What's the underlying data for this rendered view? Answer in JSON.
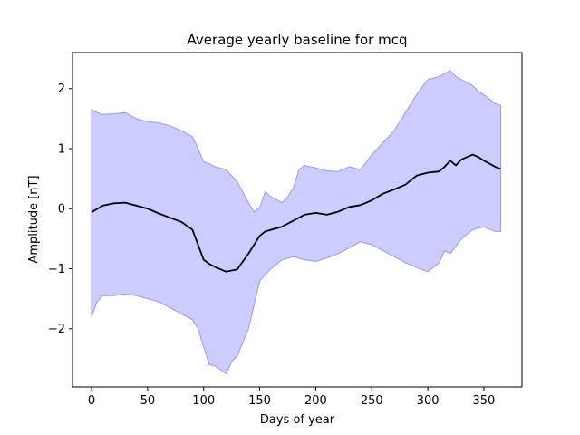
{
  "chart_data": {
    "type": "area",
    "title": "Average yearly baseline for mcq",
    "xlabel": "Days of year",
    "ylabel": "Amplitude [nT]",
    "xlim": [
      -17,
      384
    ],
    "ylim": [
      -2.97,
      2.6
    ],
    "xticks": [
      0,
      50,
      100,
      150,
      200,
      250,
      300,
      350
    ],
    "yticks": [
      -2,
      -1,
      0,
      1,
      2
    ],
    "xtick_labels": [
      "0",
      "50",
      "100",
      "150",
      "200",
      "250",
      "300",
      "350"
    ],
    "ytick_labels": [
      "−2",
      "−1",
      "0",
      "1",
      "2"
    ],
    "grid": false,
    "colors": {
      "mean_line": "#000000",
      "band_fill": "#ccccff",
      "band_edge": "#9999ee"
    },
    "series": [
      {
        "role": "mean",
        "x": [
          0,
          10,
          20,
          30,
          40,
          50,
          60,
          70,
          80,
          90,
          95,
          100,
          105,
          110,
          120,
          130,
          140,
          150,
          155,
          170,
          180,
          190,
          200,
          210,
          220,
          230,
          240,
          250,
          260,
          270,
          280,
          290,
          300,
          310,
          315,
          320,
          325,
          330,
          340,
          345,
          350,
          360,
          365
        ],
        "y": [
          -0.06,
          0.05,
          0.09,
          0.1,
          0.05,
          0.0,
          -0.08,
          -0.15,
          -0.22,
          -0.35,
          -0.6,
          -0.85,
          -0.92,
          -0.97,
          -1.05,
          -1.01,
          -0.75,
          -0.45,
          -0.38,
          -0.3,
          -0.2,
          -0.1,
          -0.07,
          -0.1,
          -0.05,
          0.03,
          0.06,
          0.14,
          0.25,
          0.32,
          0.4,
          0.55,
          0.6,
          0.62,
          0.7,
          0.8,
          0.72,
          0.82,
          0.9,
          0.86,
          0.8,
          0.7,
          0.66
        ]
      },
      {
        "role": "upper",
        "x": [
          0,
          5,
          10,
          20,
          30,
          40,
          50,
          60,
          70,
          80,
          90,
          95,
          100,
          105,
          110,
          120,
          130,
          140,
          145,
          150,
          155,
          160,
          170,
          175,
          180,
          185,
          190,
          200,
          210,
          220,
          230,
          240,
          250,
          260,
          270,
          280,
          290,
          300,
          310,
          315,
          320,
          325,
          330,
          340,
          345,
          350,
          360,
          365
        ],
        "y": [
          1.65,
          1.6,
          1.57,
          1.58,
          1.6,
          1.5,
          1.45,
          1.43,
          1.38,
          1.3,
          1.2,
          1.0,
          0.78,
          0.75,
          0.7,
          0.65,
          0.45,
          0.1,
          -0.05,
          0.02,
          0.28,
          0.2,
          0.1,
          0.2,
          0.35,
          0.65,
          0.72,
          0.68,
          0.63,
          0.62,
          0.7,
          0.65,
          0.9,
          1.1,
          1.3,
          1.6,
          1.9,
          2.15,
          2.2,
          2.25,
          2.3,
          2.2,
          2.15,
          2.05,
          1.95,
          1.9,
          1.75,
          1.72
        ]
      },
      {
        "role": "lower",
        "x": [
          0,
          5,
          10,
          20,
          30,
          40,
          50,
          60,
          70,
          80,
          90,
          95,
          100,
          105,
          110,
          115,
          120,
          125,
          130,
          140,
          145,
          150,
          160,
          170,
          180,
          190,
          200,
          210,
          220,
          230,
          240,
          250,
          260,
          270,
          280,
          290,
          300,
          310,
          315,
          320,
          330,
          340,
          350,
          360,
          365
        ],
        "y": [
          -1.8,
          -1.55,
          -1.45,
          -1.45,
          -1.42,
          -1.45,
          -1.5,
          -1.55,
          -1.65,
          -1.75,
          -1.85,
          -2.0,
          -2.3,
          -2.6,
          -2.62,
          -2.68,
          -2.75,
          -2.55,
          -2.45,
          -2.0,
          -1.6,
          -1.2,
          -1.0,
          -0.85,
          -0.8,
          -0.85,
          -0.88,
          -0.82,
          -0.75,
          -0.65,
          -0.55,
          -0.6,
          -0.7,
          -0.8,
          -0.9,
          -0.98,
          -1.05,
          -0.9,
          -0.7,
          -0.75,
          -0.5,
          -0.35,
          -0.3,
          -0.38,
          -0.38
        ]
      }
    ]
  }
}
